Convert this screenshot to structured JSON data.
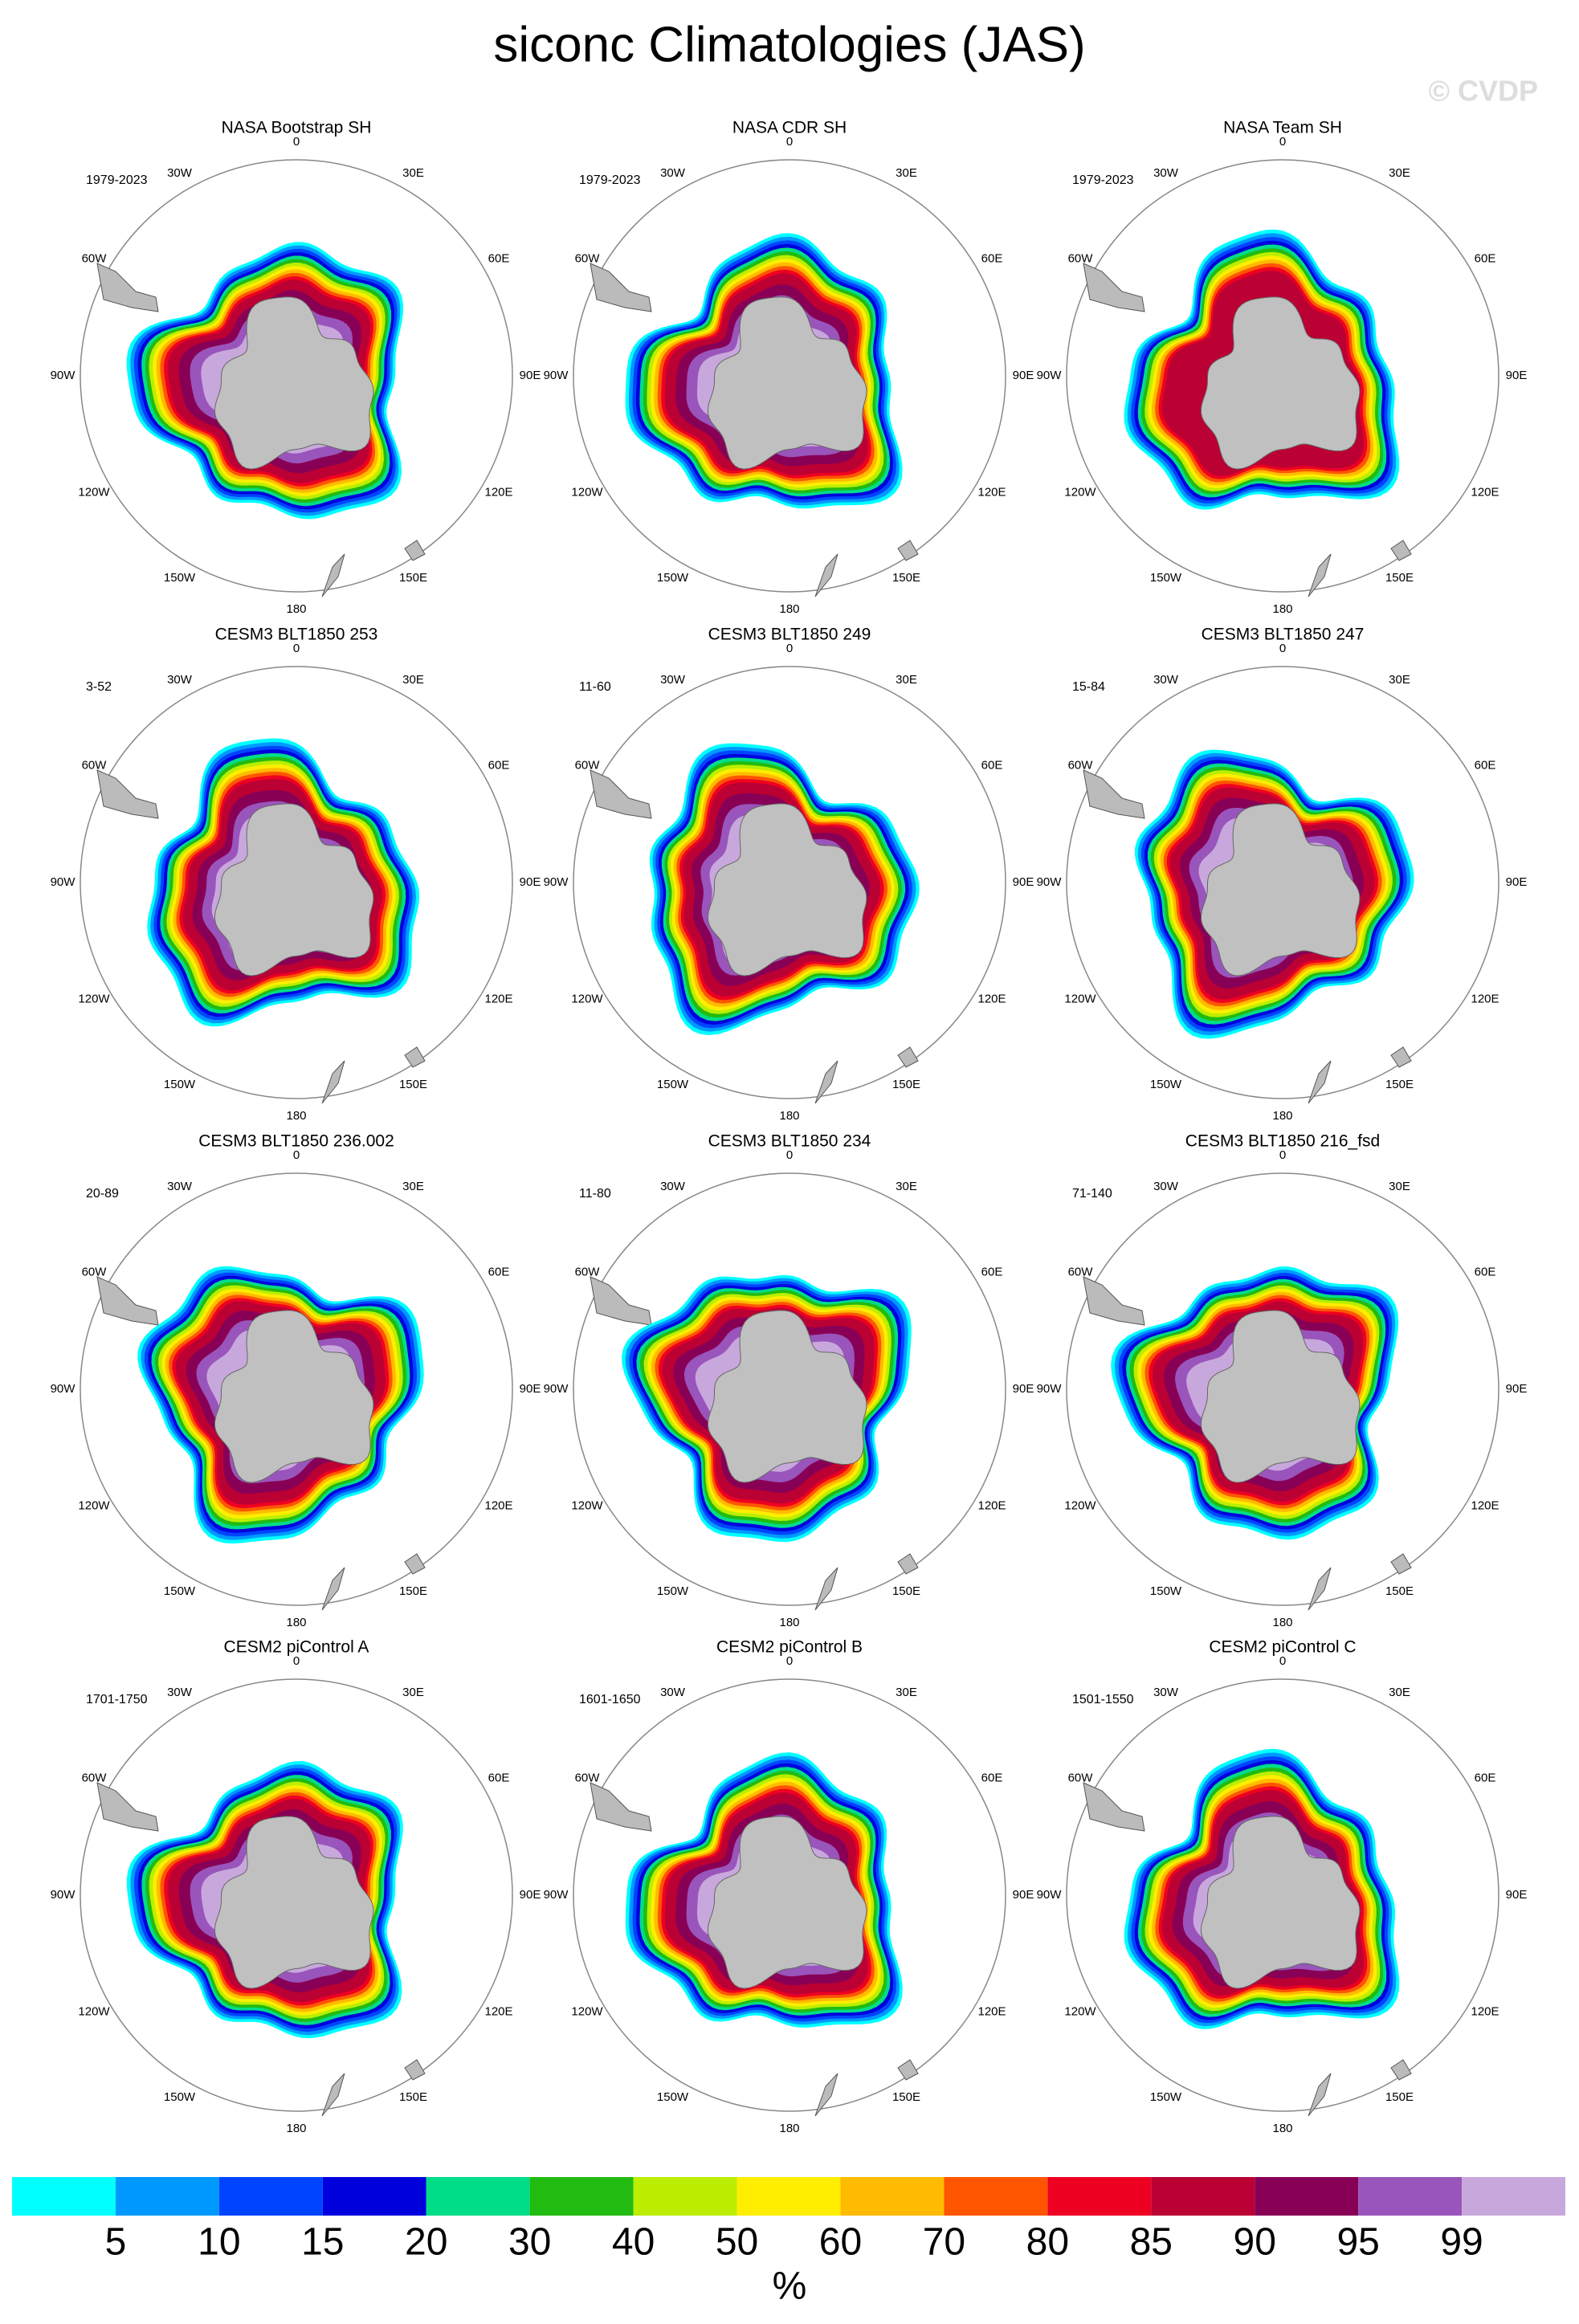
{
  "title": "siconc Climatologies (JAS)",
  "watermark": "© CVDP",
  "longitude_labels": [
    "0",
    "30E",
    "60E",
    "90E",
    "120E",
    "150E",
    "180",
    "150W",
    "120W",
    "90W",
    "60W",
    "30W"
  ],
  "panels": [
    {
      "title": "NASA Bootstrap SH",
      "period": "1979-2023"
    },
    {
      "title": "NASA CDR SH",
      "period": "1979-2023"
    },
    {
      "title": "NASA Team SH",
      "period": "1979-2023"
    },
    {
      "title": "CESM3 BLT1850 253",
      "period": "3-52"
    },
    {
      "title": "CESM3 BLT1850 249",
      "period": "11-60"
    },
    {
      "title": "CESM3 BLT1850 247",
      "period": "15-84"
    },
    {
      "title": "CESM3 BLT1850 236.002",
      "period": "20-89"
    },
    {
      "title": "CESM3 BLT1850 234",
      "period": "11-80"
    },
    {
      "title": "CESM3 BLT1850 216_fsd",
      "period": "71-140"
    },
    {
      "title": "CESM2 piControl A",
      "period": "1701-1750"
    },
    {
      "title": "CESM2 piControl B",
      "period": "1601-1650"
    },
    {
      "title": "CESM2 piControl C",
      "period": "1501-1550"
    }
  ],
  "colorbar": {
    "unit": "%",
    "levels": [
      5,
      10,
      15,
      20,
      30,
      40,
      50,
      60,
      70,
      80,
      85,
      90,
      95,
      99
    ],
    "colors": [
      "#00ffff",
      "#0099ff",
      "#0044ff",
      "#0000dd",
      "#00dd88",
      "#22bb11",
      "#bbee00",
      "#ffee00",
      "#ffbb00",
      "#ff5500",
      "#ee0022",
      "#bb0033",
      "#880055",
      "#9955bb",
      "#c8a8dc"
    ]
  }
}
